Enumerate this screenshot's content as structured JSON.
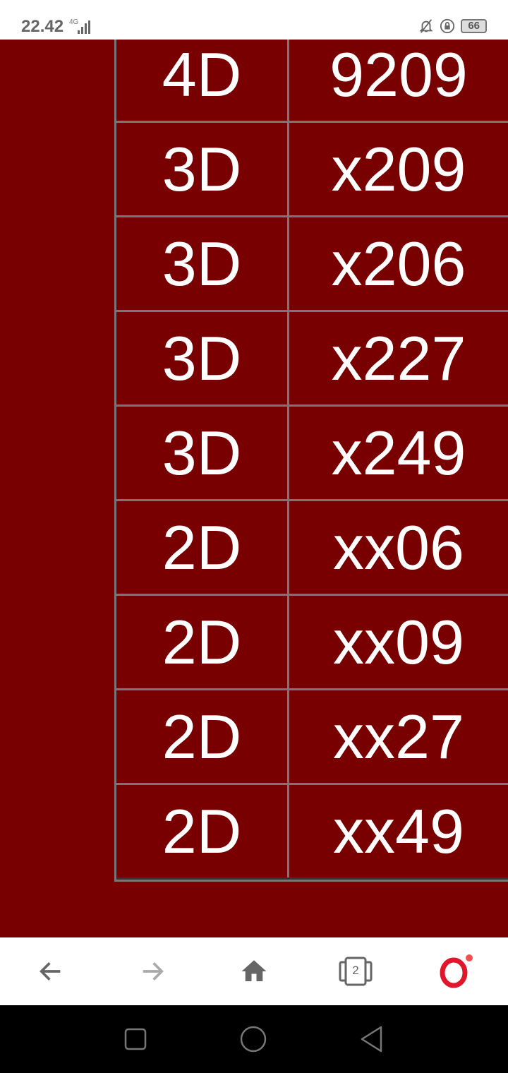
{
  "status_bar": {
    "time": "22.42",
    "network": "4G",
    "battery": "66"
  },
  "rows": [
    {
      "type": "4D",
      "number": "9209"
    },
    {
      "type": "3D",
      "number": "x209"
    },
    {
      "type": "3D",
      "number": "x206"
    },
    {
      "type": "3D",
      "number": "x227"
    },
    {
      "type": "3D",
      "number": "x249"
    },
    {
      "type": "2D",
      "number": "xx06"
    },
    {
      "type": "2D",
      "number": "xx09"
    },
    {
      "type": "2D",
      "number": "xx27"
    },
    {
      "type": "2D",
      "number": "xx49"
    }
  ],
  "browser_nav": {
    "tab_count": "2"
  },
  "colors": {
    "background": "#790000",
    "border": "#777777",
    "opera_red": "#e0172c"
  }
}
